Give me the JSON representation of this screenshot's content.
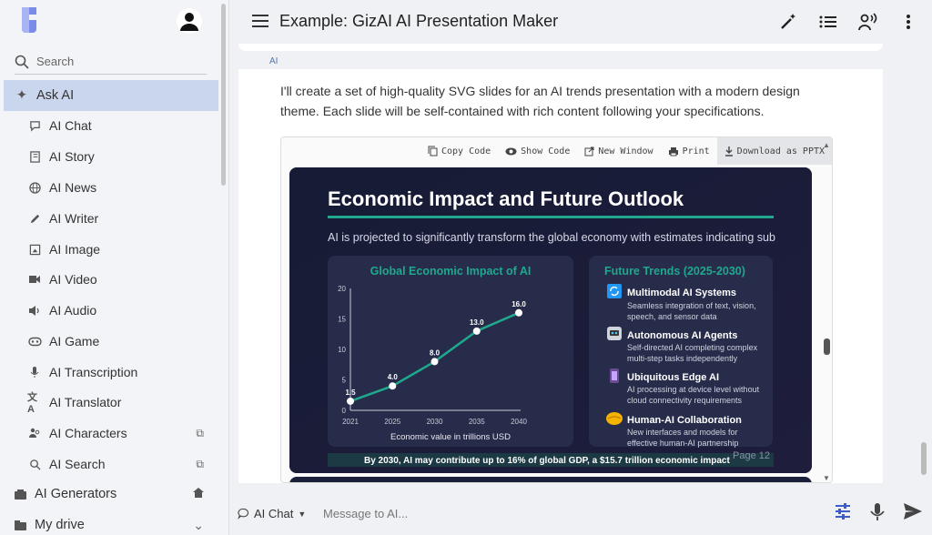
{
  "sidebar": {
    "search_placeholder": "Search",
    "ask_ai": "Ask AI",
    "items": [
      {
        "label": "AI Chat"
      },
      {
        "label": "AI Story"
      },
      {
        "label": "AI News"
      },
      {
        "label": "AI Writer"
      },
      {
        "label": "AI Image"
      },
      {
        "label": "AI Video"
      },
      {
        "label": "AI Audio"
      },
      {
        "label": "AI Game"
      },
      {
        "label": "AI Transcription"
      },
      {
        "label": "AI Translator"
      },
      {
        "label": "AI Characters"
      },
      {
        "label": "AI Search"
      }
    ],
    "generators": "AI Generators",
    "drive": "My drive"
  },
  "header": {
    "title": "Example: GizAI AI Presentation Maker"
  },
  "message": {
    "author": "AI",
    "text": "I'll create a set of high-quality SVG slides for an AI trends presentation with a modern design theme. Each slide will be self-contained with rich content following your specifications."
  },
  "toolbar": {
    "copy": "Copy Code",
    "show": "Show Code",
    "new_window": "New Window",
    "print": "Print",
    "download": "Download as PPTX"
  },
  "slide": {
    "title": "Economic Impact and Future Outlook",
    "subtitle": "AI is projected to significantly transform the global economy with estimates indicating sub",
    "footer": "By 2030, AI may contribute up to 16% of global GDP, a $15.7 trillion economic impact",
    "page": "Page 12",
    "trends_title": "Future Trends (2025-2030)",
    "trends": [
      {
        "title": "Multimodal AI Systems",
        "desc1": "Seamless integration of text, vision,",
        "desc2": "speech, and sensor data"
      },
      {
        "title": "Autonomous AI Agents",
        "desc1": "Self-directed AI completing complex",
        "desc2": "multi-step tasks independently"
      },
      {
        "title": "Ubiquitous Edge AI",
        "desc1": "AI processing at device level without",
        "desc2": "cloud connectivity requirements"
      },
      {
        "title": "Human-AI Collaboration",
        "desc1": "New interfaces and models for",
        "desc2": "effective human-AI partnership"
      }
    ]
  },
  "chart_data": {
    "type": "line",
    "title": "Global Economic Impact of AI",
    "xlabel": "Economic value in trillions USD",
    "ylabel": "",
    "x": [
      "2021",
      "2025",
      "2030",
      "2035",
      "2040"
    ],
    "values": [
      1.5,
      4.0,
      8.0,
      13.0,
      16.0
    ],
    "data_labels": [
      "1.5",
      "4.0",
      "8.0",
      "13.0",
      "16.0"
    ],
    "yticks": [
      "0",
      "5",
      "10",
      "15",
      "20"
    ],
    "ylim": [
      0,
      20
    ],
    "grid": false,
    "color": "#1fa88e"
  },
  "input": {
    "model": "AI Chat",
    "placeholder": "Message to AI..."
  },
  "colors": {
    "accent": "#3a5ccc",
    "active_bg": "#c9d6ee",
    "slide_bg": "#141a30",
    "teal": "#1fa88e"
  }
}
